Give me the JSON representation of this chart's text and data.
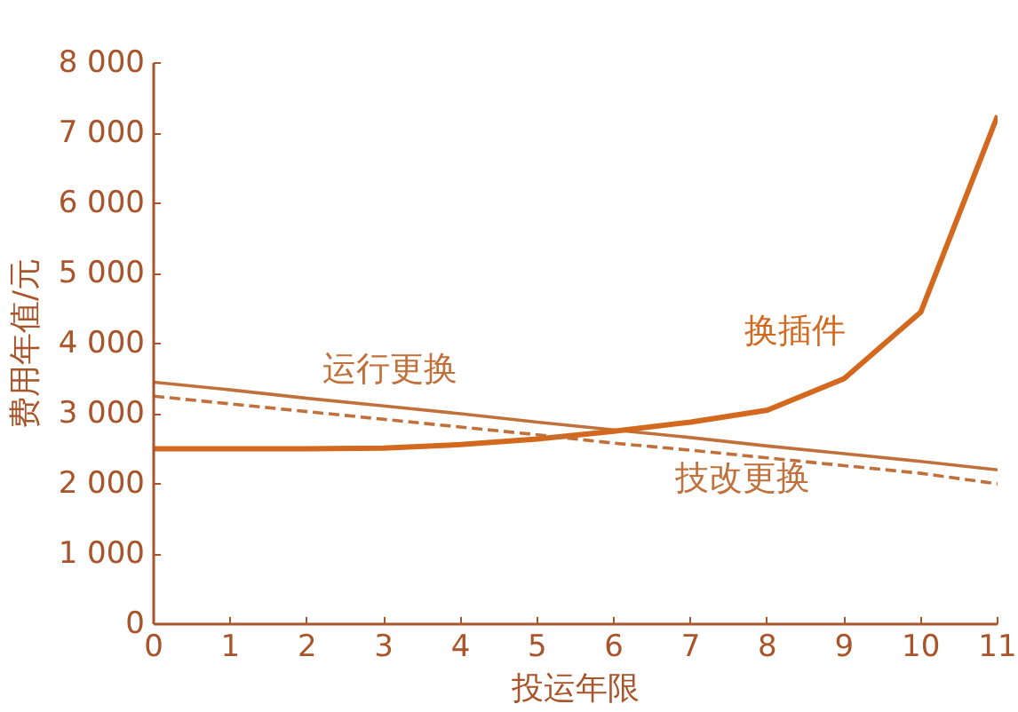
{
  "chart_data": {
    "type": "line",
    "xlabel": "投运年限",
    "ylabel": "费用年值/元",
    "x": [
      0,
      1,
      2,
      3,
      4,
      5,
      6,
      7,
      8,
      9,
      10,
      11
    ],
    "xlim": [
      0,
      11
    ],
    "xticks": [
      0,
      1,
      2,
      3,
      4,
      5,
      6,
      7,
      8,
      9,
      10,
      11
    ],
    "ylim": [
      0,
      8000
    ],
    "yticks": [
      {
        "value": 0,
        "label": "0"
      },
      {
        "value": 1000,
        "label": "1 000"
      },
      {
        "value": 2000,
        "label": "2 000"
      },
      {
        "value": 3000,
        "label": "3 000"
      },
      {
        "value": 4000,
        "label": "4 000"
      },
      {
        "value": 5000,
        "label": "5 000"
      },
      {
        "value": 6000,
        "label": "6 000"
      },
      {
        "value": 7000,
        "label": "7 000"
      },
      {
        "value": 8000,
        "label": "8 000"
      }
    ],
    "series": [
      {
        "name": "运行更换",
        "color": "#c0703a",
        "line_style": "solid",
        "values": [
          3450,
          3340,
          3220,
          3110,
          3000,
          2880,
          2770,
          2660,
          2540,
          2430,
          2320,
          2200
        ]
      },
      {
        "name": "换插件",
        "color": "#d2691e",
        "line_style": "solid",
        "values": [
          2500,
          2500,
          2500,
          2510,
          2560,
          2640,
          2750,
          2880,
          3050,
          3500,
          4450,
          7250
        ]
      },
      {
        "name": "技改更换",
        "color": "#c0703a",
        "line_style": "dashed",
        "values": [
          3250,
          3140,
          3030,
          2920,
          2810,
          2700,
          2580,
          2480,
          2370,
          2260,
          2150,
          2000
        ]
      }
    ],
    "marker": "none"
  }
}
